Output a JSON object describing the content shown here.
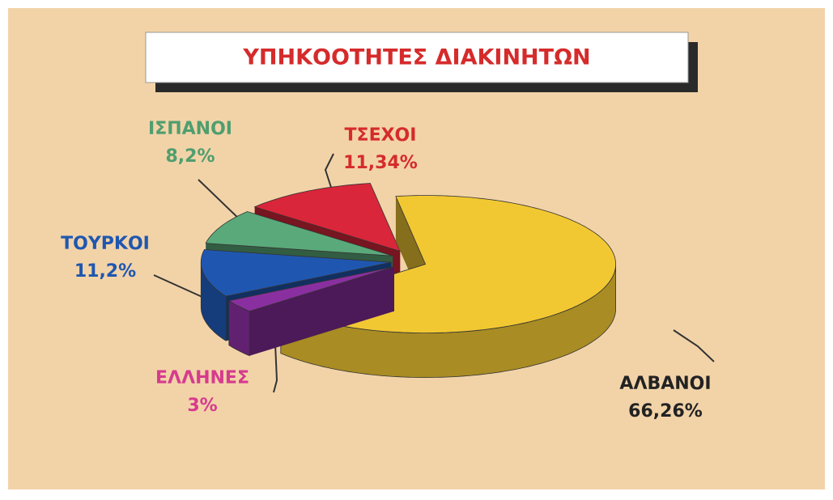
{
  "chart_data": {
    "type": "pie",
    "title": "ΥΠΗΚΟΟΤΗΤΕΣ ΔΙΑΚΙΝΗΤΩΝ",
    "categories": [
      "ΑΛΒΑΝΟΙ",
      "ΕΛΛΗΝΕΣ",
      "ΤΟΥΡΚΟΙ",
      "ΙΣΠΑΝΟΙ",
      "ΤΣΕΧΟΙ"
    ],
    "values": [
      66.26,
      3,
      11.2,
      8.2,
      11.34
    ],
    "value_labels": [
      "66,26%",
      "3%",
      "11,2%",
      "8,2%",
      "11,34%"
    ],
    "colors": [
      "#f2c832",
      "#8a2fa0",
      "#1f57b0",
      "#5aa97a",
      "#d9263a"
    ],
    "label_colors": [
      "#222222",
      "#d63b8e",
      "#1f57b0",
      "#4f9e6e",
      "#d52b2b"
    ]
  }
}
